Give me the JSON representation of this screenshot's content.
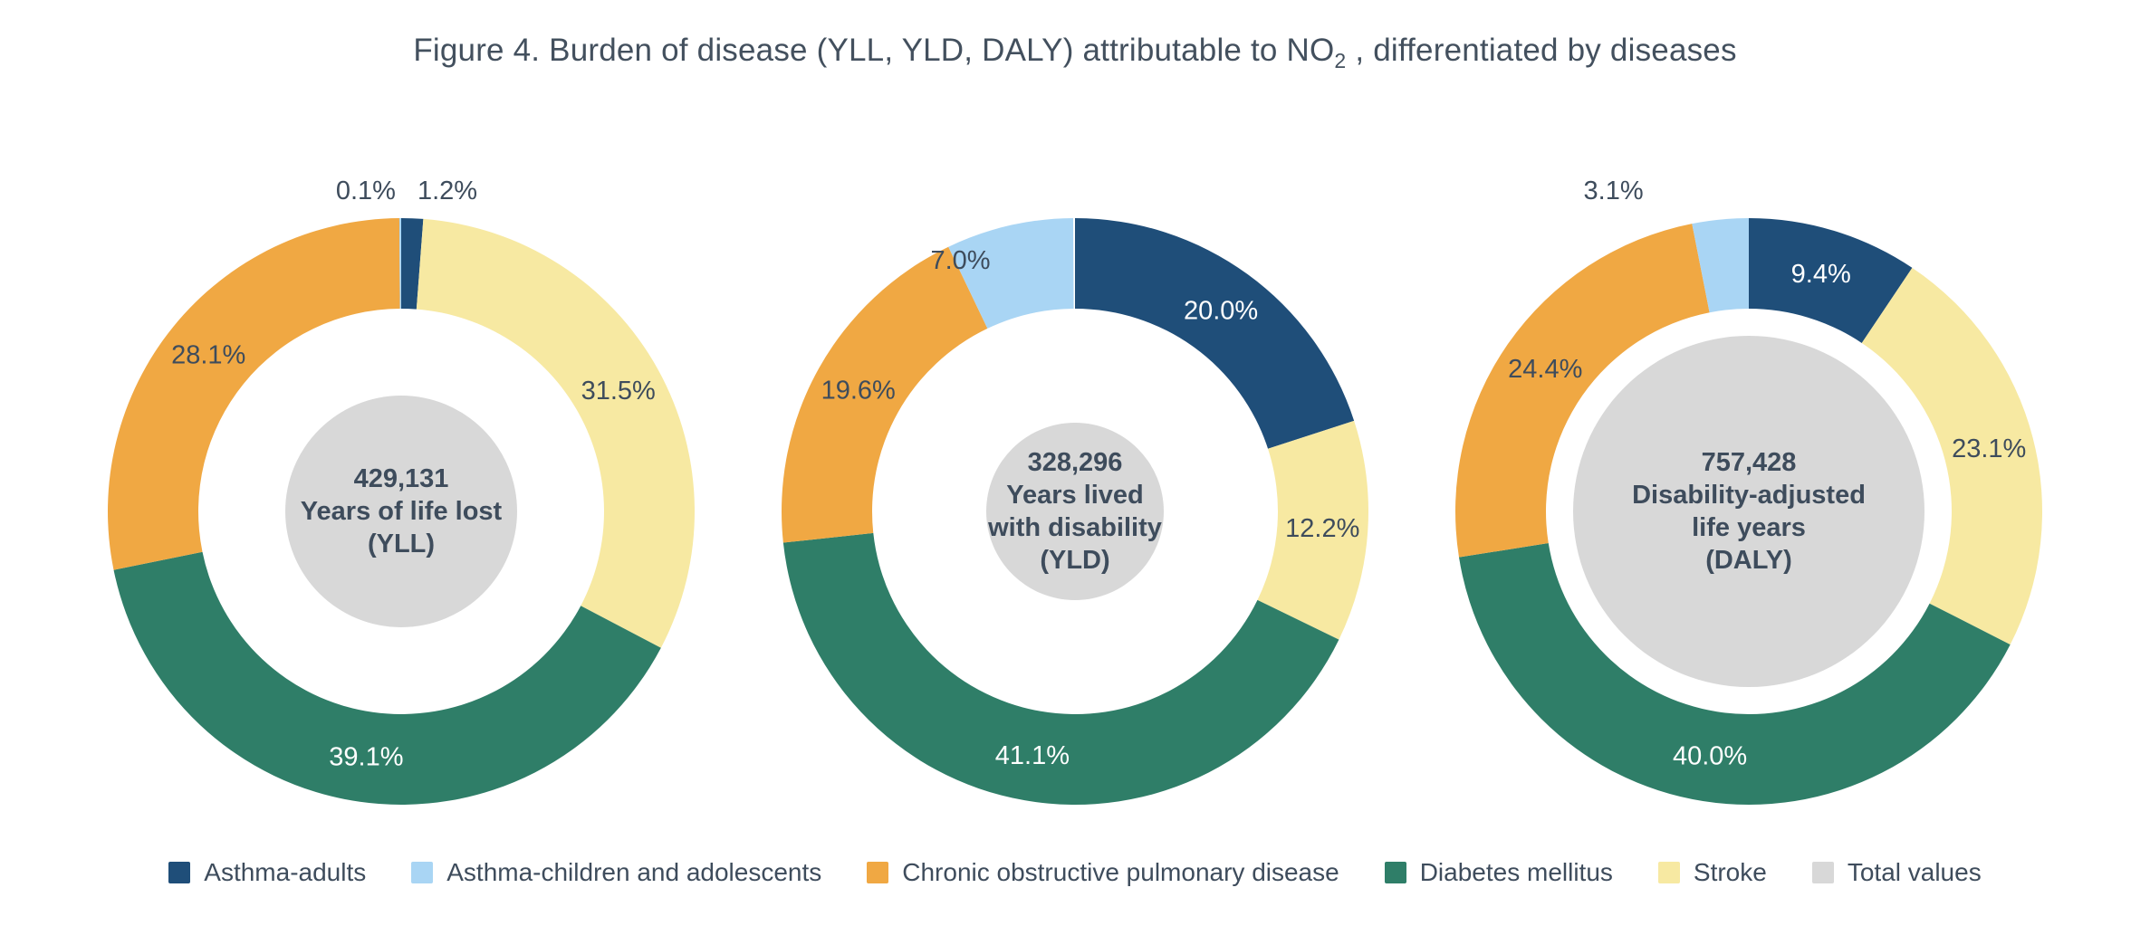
{
  "title": {
    "before_sub": "Figure 4. Burden of disease (YLL, YLD, DALY) attributable to NO",
    "subscript": "2",
    "after_sub": " , differentiated by diseases"
  },
  "colors": {
    "asthma_adults": "#1F4E79",
    "asthma_children": "#A9D5F4",
    "copd": "#F0A843",
    "diabetes": "#2F7E68",
    "stroke": "#F7E9A2",
    "total": "#D8D8D8",
    "label_dark": "#3E4C5C",
    "label_light": "#FFFFFF",
    "title_text": "#43505E"
  },
  "legend": [
    {
      "key": "asthma_adults",
      "label": "Asthma-adults"
    },
    {
      "key": "asthma_children",
      "label": "Asthma-children and adolescents"
    },
    {
      "key": "copd",
      "label": "Chronic obstructive pulmonary disease"
    },
    {
      "key": "diabetes",
      "label": "Diabetes mellitus"
    },
    {
      "key": "stroke",
      "label": "Stroke"
    },
    {
      "key": "total",
      "label": "Total values"
    }
  ],
  "chart_data": [
    {
      "id": "yll",
      "type": "pie",
      "subtype": "donut",
      "start_angle_deg": 0,
      "direction": "clockwise",
      "center": {
        "value_text": "429,131",
        "lines": [
          "429,131",
          "Years of life lost",
          "(YLL)"
        ],
        "total_numeric": 429131,
        "circle_radius_px": 128
      },
      "segments": [
        {
          "name": "Asthma-adults",
          "color_key": "asthma_adults",
          "percent": 1.2,
          "label": "1.2%",
          "label_placement": "outside",
          "label_tone": "dark",
          "label_dx": 38
        },
        {
          "name": "Stroke",
          "color_key": "stroke",
          "percent": 31.5,
          "label": "31.5%",
          "label_placement": "inside",
          "label_tone": "dark"
        },
        {
          "name": "Diabetes mellitus",
          "color_key": "diabetes",
          "percent": 39.1,
          "label": "39.1%",
          "label_placement": "inside",
          "label_tone": "light"
        },
        {
          "name": "Chronic obstructive pulmonary disease",
          "color_key": "copd",
          "percent": 28.1,
          "label": "28.1%",
          "label_placement": "inside",
          "label_tone": "dark"
        },
        {
          "name": "Asthma-children and adolescents",
          "color_key": "asthma_children",
          "percent": 0.1,
          "label": "0.1%",
          "label_placement": "outside",
          "label_tone": "dark",
          "label_dx": -38
        }
      ]
    },
    {
      "id": "yld",
      "type": "pie",
      "subtype": "donut",
      "start_angle_deg": 0,
      "direction": "clockwise",
      "center": {
        "value_text": "328,296",
        "lines": [
          "328,296",
          "Years lived",
          "with disability",
          "(YLD)"
        ],
        "total_numeric": 328296,
        "circle_radius_px": 98
      },
      "segments": [
        {
          "name": "Asthma-adults",
          "color_key": "asthma_adults",
          "percent": 20.0,
          "label": "20.0%",
          "label_placement": "inside",
          "label_tone": "light"
        },
        {
          "name": "Stroke",
          "color_key": "stroke",
          "percent": 12.2,
          "label": "12.2%",
          "label_placement": "inside",
          "label_tone": "dark"
        },
        {
          "name": "Diabetes mellitus",
          "color_key": "diabetes",
          "percent": 41.1,
          "label": "41.1%",
          "label_placement": "inside",
          "label_tone": "light"
        },
        {
          "name": "Chronic obstructive pulmonary disease",
          "color_key": "copd",
          "percent": 19.6,
          "label": "19.6%",
          "label_placement": "inside",
          "label_tone": "dark"
        },
        {
          "name": "Asthma-children and adolescents",
          "color_key": "asthma_children",
          "percent": 7.0,
          "label": "7.0%",
          "label_placement": "inside",
          "label_tone": "dark",
          "label_dx": -65,
          "label_dy": -10
        }
      ]
    },
    {
      "id": "daly",
      "type": "pie",
      "subtype": "donut",
      "start_angle_deg": 0,
      "direction": "clockwise",
      "center": {
        "value_text": "757,428",
        "lines": [
          "757,428",
          "Disability-adjusted",
          "life years",
          "(DALY)"
        ],
        "total_numeric": 757428,
        "circle_radius_px": 194
      },
      "segments": [
        {
          "name": "Asthma-adults",
          "color_key": "asthma_adults",
          "percent": 9.4,
          "label": "9.4%",
          "label_placement": "inside",
          "label_tone": "light"
        },
        {
          "name": "Stroke",
          "color_key": "stroke",
          "percent": 23.1,
          "label": "23.1%",
          "label_placement": "inside",
          "label_tone": "dark"
        },
        {
          "name": "Diabetes mellitus",
          "color_key": "diabetes",
          "percent": 40.0,
          "label": "40.0%",
          "label_placement": "inside",
          "label_tone": "light"
        },
        {
          "name": "Chronic obstructive pulmonary disease",
          "color_key": "copd",
          "percent": 24.4,
          "label": "24.4%",
          "label_placement": "inside",
          "label_tone": "dark"
        },
        {
          "name": "Asthma-children and adolescents",
          "color_key": "asthma_children",
          "percent": 3.1,
          "label": "3.1%",
          "label_placement": "outside",
          "label_tone": "dark",
          "label_dx": -116
        }
      ]
    }
  ]
}
